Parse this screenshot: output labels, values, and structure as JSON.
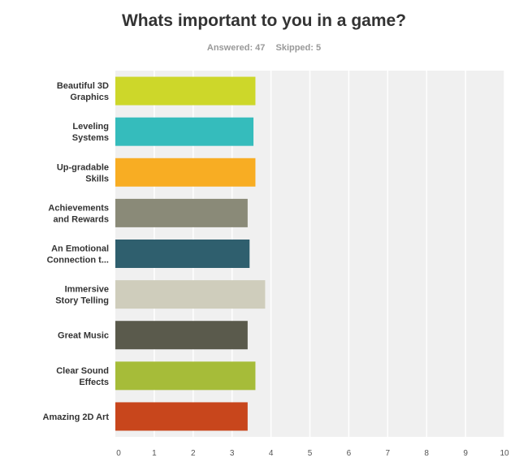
{
  "title": "Whats important to you in a game?",
  "answered": "Answered: 47",
  "skipped": "Skipped: 5",
  "chart_data": {
    "type": "bar",
    "orientation": "horizontal",
    "categories": [
      [
        "Beautiful 3D",
        "Graphics"
      ],
      [
        "Leveling",
        "Systems"
      ],
      [
        "Up-gradable",
        "Skills"
      ],
      [
        "Achievements",
        "and Rewards"
      ],
      [
        "An Emotional",
        "Connection t..."
      ],
      [
        "Immersive",
        "Story Telling"
      ],
      [
        "Great Music"
      ],
      [
        "Clear Sound",
        "Effects"
      ],
      [
        "Amazing 2D Art"
      ]
    ],
    "values": [
      3.6,
      3.55,
      3.6,
      3.4,
      3.45,
      3.85,
      3.4,
      3.6,
      3.4
    ],
    "colors": [
      "#cdd72a",
      "#35bcbc",
      "#f8ad23",
      "#8a8a78",
      "#2f5f6e",
      "#cfcdbc",
      "#5a5a4c",
      "#a6bc39",
      "#c8461c"
    ],
    "xlim": [
      0,
      10
    ],
    "xticks": [
      "0",
      "1",
      "2",
      "3",
      "4",
      "5",
      "6",
      "7",
      "8",
      "9",
      "10"
    ],
    "grid": true,
    "plot_background": "#f0f0f0"
  }
}
